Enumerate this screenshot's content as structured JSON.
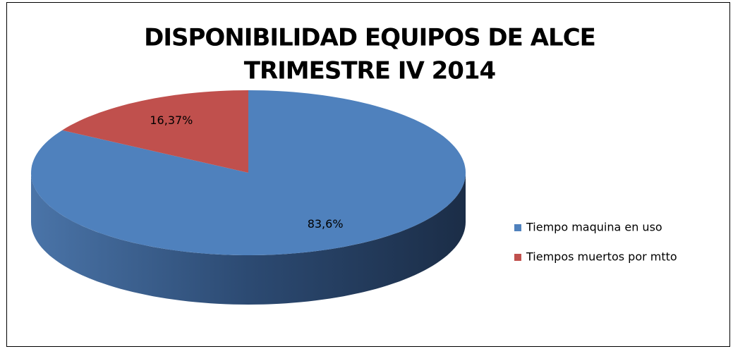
{
  "chart_data": {
    "type": "pie",
    "title": [
      "DISPONIBILIDAD EQUIPOS DE ALCE",
      "TRIMESTRE  IV 2014"
    ],
    "categories": [
      "Tiempo maquina en uso",
      "Tiempos muertos por mtto"
    ],
    "values": [
      83.6,
      16.37
    ],
    "value_labels": [
      "83,6%",
      "16,37%"
    ],
    "colors": [
      "#4f81bd",
      "#c0504d"
    ],
    "legend": "right"
  }
}
